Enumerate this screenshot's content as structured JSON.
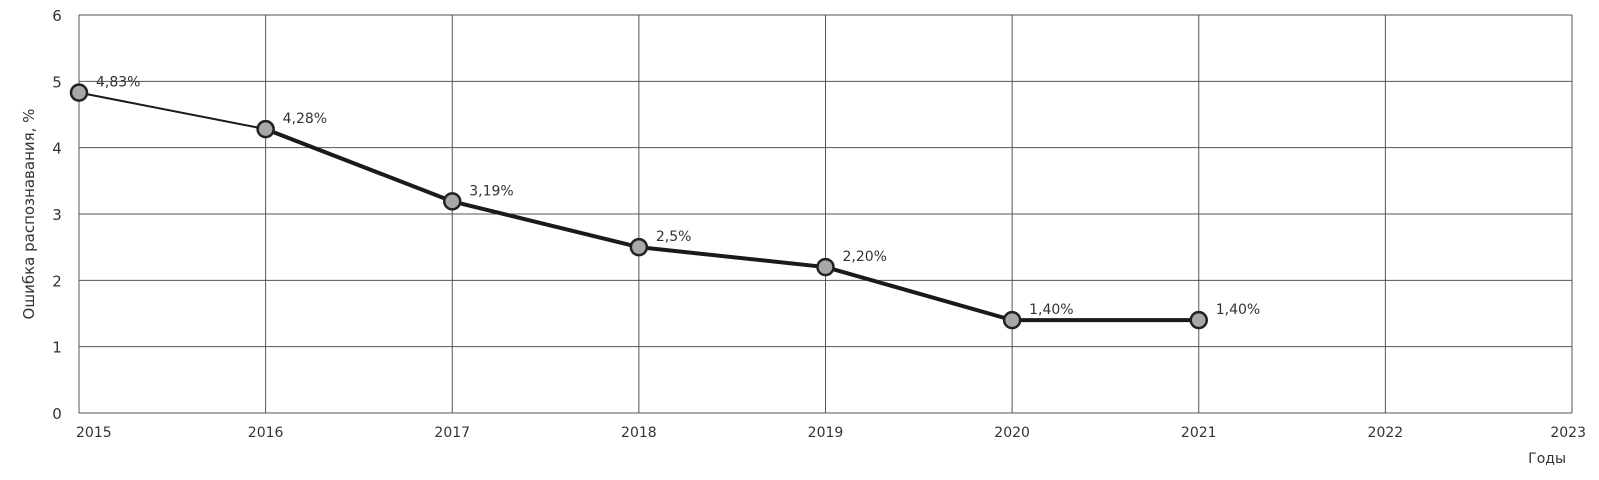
{
  "chart_data": {
    "type": "line",
    "title": "",
    "xlabel": "Годы",
    "ylabel": "Ошибка распознавания, %",
    "x": [
      2015,
      2016,
      2017,
      2018,
      2019,
      2020,
      2021
    ],
    "values": [
      4.83,
      4.28,
      3.19,
      2.5,
      2.2,
      1.4,
      1.4
    ],
    "data_labels": [
      "4,83%",
      "4,28%",
      "3,19%",
      "2,5%",
      "2,20%",
      "1,40%",
      "1,40%"
    ],
    "xlim": [
      2015,
      2023
    ],
    "ylim": [
      0,
      6
    ],
    "x_ticks": [
      "2015",
      "2016",
      "2017",
      "2018",
      "2019",
      "2020",
      "2021",
      "2022",
      "2023"
    ],
    "y_ticks": [
      "0",
      "1",
      "2",
      "3",
      "4",
      "5",
      "6"
    ],
    "grid": true,
    "legend": "none",
    "colors": {
      "line": "#1a1a1a",
      "marker_fill": "#a8a8a8",
      "grid": "#555555"
    }
  }
}
